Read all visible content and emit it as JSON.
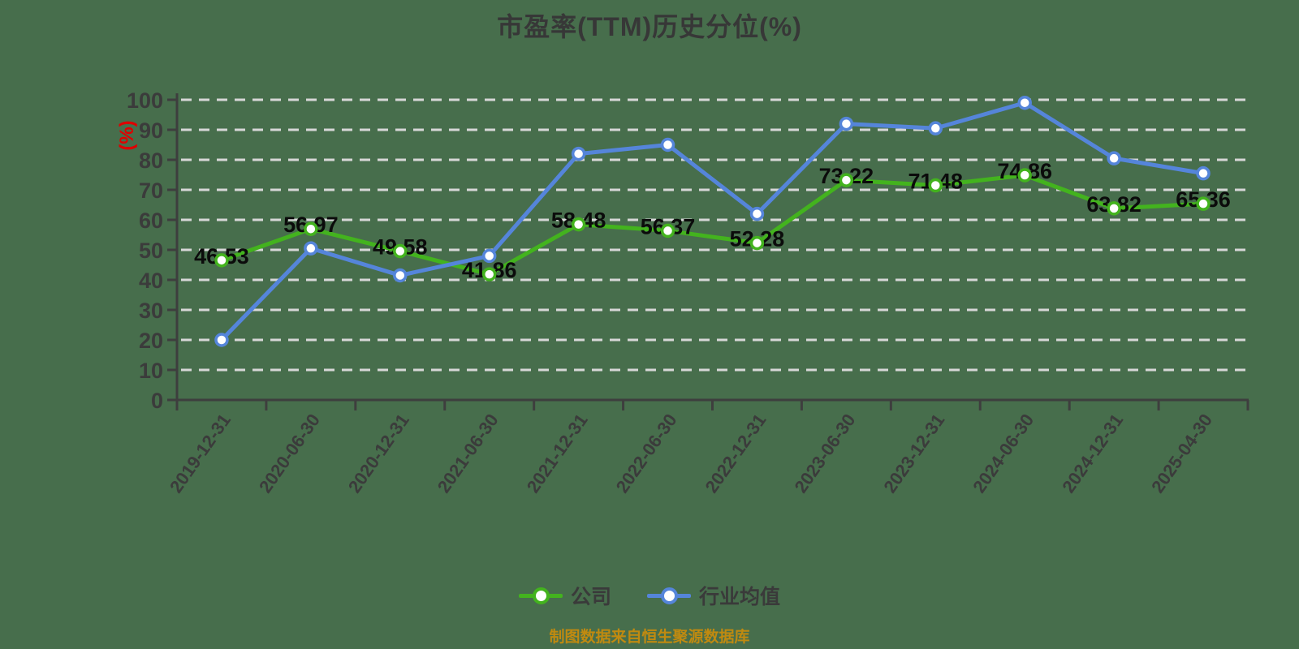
{
  "page": {
    "background_color": "#476e4c"
  },
  "title": {
    "text": "市盈率(TTM)历史分位(%)",
    "color": "#373737"
  },
  "footer": {
    "text": "制图数据来自恒生聚源数据库",
    "color": "#c08a10"
  },
  "legend": {
    "items": [
      {
        "label": "公司",
        "color": "#43b31e"
      },
      {
        "label": "行业均值",
        "color": "#5585da"
      }
    ],
    "text_color": "#3a3a3a",
    "position": "bottom"
  },
  "colors": {
    "grid": "#d7d7d7",
    "axis": "#3e3e3e",
    "tick_label": "#3b3b3b",
    "data_label": "#0b0b0b",
    "y_unit_label": "#df0000",
    "marker_fill": "#ffffff"
  },
  "chart_data": {
    "type": "line",
    "title": "市盈率(TTM)历史分位(%)",
    "ylabel": "(%)",
    "xlabel": "",
    "ylim": [
      0,
      100
    ],
    "y_ticks": [
      0,
      10,
      20,
      30,
      40,
      50,
      60,
      70,
      80,
      90,
      100
    ],
    "grid": "horizontal-dashed",
    "legend_position": "bottom",
    "x_label_rotation_deg": -55,
    "categories": [
      "2019-12-31",
      "2020-06-30",
      "2020-12-31",
      "2021-06-30",
      "2021-12-31",
      "2022-06-30",
      "2022-12-31",
      "2023-06-30",
      "2023-12-31",
      "2024-06-30",
      "2024-12-31",
      "2025-04-30"
    ],
    "series": [
      {
        "name": "公司",
        "color": "#43b31e",
        "values": [
          46.53,
          56.97,
          49.58,
          41.86,
          58.48,
          56.37,
          52.28,
          73.22,
          71.48,
          74.86,
          63.82,
          65.36
        ],
        "labels_visible": true
      },
      {
        "name": "行业均值",
        "color": "#5585da",
        "values": [
          20,
          50.5,
          41.5,
          48,
          82,
          85,
          62,
          92,
          90.5,
          99,
          80.5,
          75.5
        ],
        "labels_visible": false
      }
    ]
  }
}
